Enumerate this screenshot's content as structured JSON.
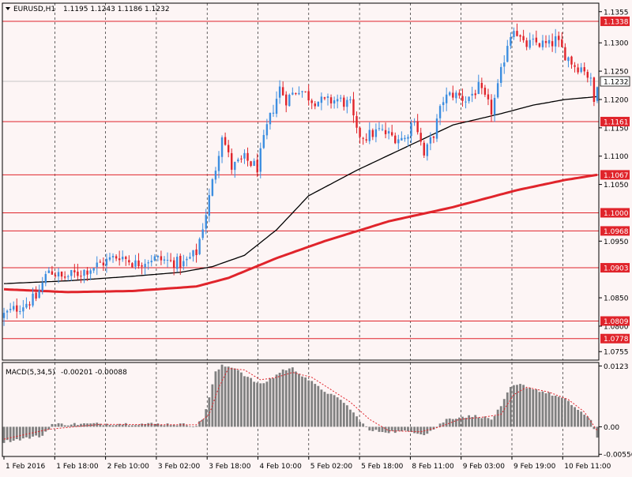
{
  "header": {
    "symbol": "EURUSD,H1",
    "ohlc": "1.1195 1.1243 1.1186 1.1232"
  },
  "colors": {
    "background": "#fdf5f5",
    "bull_candle": "#3d8ee0",
    "bear_candle": "#e0242b",
    "level_line": "#e0242b",
    "ma_fast": "#000000",
    "ma_slow": "#e0242b",
    "macd_hist": "#808080",
    "macd_signal": "#e0242b",
    "grid": "#000000"
  },
  "chart_data": [
    {
      "type": "candlestick",
      "title": "",
      "y_ticks": [
        "1.1355",
        "1.1300",
        "1.1250",
        "1.1200",
        "1.1150",
        "1.1100",
        "1.1050",
        "1.0950",
        "1.0850",
        "1.0800",
        "1.0755"
      ],
      "ylim": [
        1.074,
        1.137
      ],
      "x_labels": [
        "1 Feb 2016",
        "1 Feb 18:00",
        "2 Feb 10:00",
        "3 Feb 02:00",
        "3 Feb 18:00",
        "4 Feb 10:00",
        "5 Feb 02:00",
        "5 Feb 18:00",
        "8 Feb 11:00",
        "9 Feb 03:00",
        "9 Feb 19:00",
        "10 Feb 11:00"
      ],
      "grid": "vertical-dashed",
      "current_price": "1.1232",
      "levels": [
        {
          "value": 1.1338,
          "label": "1.1338"
        },
        {
          "value": 1.1161,
          "label": "1.1161"
        },
        {
          "value": 1.1067,
          "label": "1.1067"
        },
        {
          "value": 1.1,
          "label": "1.1000"
        },
        {
          "value": 1.0968,
          "label": "1.0968"
        },
        {
          "value": 1.0903,
          "label": "1.0903"
        },
        {
          "value": 1.0809,
          "label": "1.0809"
        },
        {
          "value": 1.0778,
          "label": "1.0778"
        }
      ],
      "price_path": [
        [
          0,
          1.082
        ],
        [
          5,
          1.0835
        ],
        [
          10,
          1.085
        ],
        [
          14,
          1.09
        ],
        [
          18,
          1.0885
        ],
        [
          24,
          1.0895
        ],
        [
          30,
          1.091
        ],
        [
          36,
          1.0925
        ],
        [
          41,
          1.091
        ],
        [
          46,
          1.092
        ],
        [
          51,
          1.0915
        ],
        [
          56,
          1.091
        ],
        [
          60,
          1.093
        ],
        [
          63,
          1.1
        ],
        [
          66,
          1.108
        ],
        [
          68,
          1.114
        ],
        [
          71,
          1.108
        ],
        [
          75,
          1.1095
        ],
        [
          79,
          1.108
        ],
        [
          82,
          1.115
        ],
        [
          86,
          1.122
        ],
        [
          88,
          1.12
        ],
        [
          92,
          1.122
        ],
        [
          96,
          1.12
        ],
        [
          100,
          1.1195
        ],
        [
          104,
          1.12
        ],
        [
          108,
          1.119
        ],
        [
          110,
          1.114
        ],
        [
          113,
          1.1135
        ],
        [
          117,
          1.1145
        ],
        [
          121,
          1.1135
        ],
        [
          125,
          1.113
        ],
        [
          128,
          1.117
        ],
        [
          131,
          1.11
        ],
        [
          134,
          1.114
        ],
        [
          137,
          1.12
        ],
        [
          140,
          1.121
        ],
        [
          144,
          1.12
        ],
        [
          148,
          1.122
        ],
        [
          152,
          1.118
        ],
        [
          154,
          1.122
        ],
        [
          157,
          1.13
        ],
        [
          159,
          1.133
        ],
        [
          162,
          1.1295
        ],
        [
          166,
          1.13
        ],
        [
          170,
          1.1295
        ],
        [
          172,
          1.1305
        ],
        [
          175,
          1.128
        ],
        [
          178,
          1.126
        ],
        [
          181,
          1.1255
        ],
        [
          183,
          1.123
        ],
        [
          184,
          1.1195
        ],
        [
          185,
          1.1232
        ]
      ],
      "ma_fast_path": [
        [
          0,
          1.0875
        ],
        [
          20,
          1.088
        ],
        [
          40,
          1.0888
        ],
        [
          55,
          1.0895
        ],
        [
          65,
          1.0905
        ],
        [
          75,
          1.0925
        ],
        [
          85,
          1.097
        ],
        [
          95,
          1.103
        ],
        [
          110,
          1.1075
        ],
        [
          125,
          1.1115
        ],
        [
          140,
          1.1155
        ],
        [
          155,
          1.1175
        ],
        [
          165,
          1.119
        ],
        [
          175,
          1.12
        ],
        [
          185,
          1.1205
        ]
      ],
      "ma_slow_path": [
        [
          0,
          1.0865
        ],
        [
          20,
          1.086
        ],
        [
          40,
          1.0862
        ],
        [
          60,
          1.087
        ],
        [
          70,
          1.0885
        ],
        [
          85,
          1.092
        ],
        [
          100,
          1.095
        ],
        [
          120,
          1.0985
        ],
        [
          140,
          1.101
        ],
        [
          160,
          1.104
        ],
        [
          175,
          1.1058
        ],
        [
          185,
          1.1067
        ]
      ]
    },
    {
      "type": "histogram",
      "label": "MACD(5,34,5)",
      "values_text": "-0.00201 -0.00088",
      "y_ticks": [
        "0.0123",
        "0.00",
        "-0.00556"
      ],
      "ylim": [
        -0.006,
        0.013
      ],
      "hist_path": [
        [
          0,
          -0.003
        ],
        [
          12,
          -0.0018
        ],
        [
          15,
          0.0005
        ],
        [
          30,
          0.0006
        ],
        [
          45,
          0.0006
        ],
        [
          55,
          0.0005
        ],
        [
          60,
          0.0003
        ],
        [
          62,
          0.0015
        ],
        [
          64,
          0.006
        ],
        [
          66,
          0.011
        ],
        [
          68,
          0.0123
        ],
        [
          72,
          0.012
        ],
        [
          76,
          0.01
        ],
        [
          80,
          0.0085
        ],
        [
          84,
          0.01
        ],
        [
          87,
          0.0115
        ],
        [
          90,
          0.0118
        ],
        [
          94,
          0.01
        ],
        [
          98,
          0.008
        ],
        [
          102,
          0.0065
        ],
        [
          106,
          0.005
        ],
        [
          110,
          0.002
        ],
        [
          114,
          -0.0008
        ],
        [
          120,
          -0.001
        ],
        [
          128,
          -0.001
        ],
        [
          131,
          -0.0015
        ],
        [
          134,
          -0.0005
        ],
        [
          138,
          0.0015
        ],
        [
          142,
          0.002
        ],
        [
          148,
          0.0022
        ],
        [
          152,
          0.0015
        ],
        [
          155,
          0.004
        ],
        [
          158,
          0.008
        ],
        [
          161,
          0.0085
        ],
        [
          166,
          0.0075
        ],
        [
          171,
          0.0065
        ],
        [
          175,
          0.0055
        ],
        [
          180,
          0.003
        ],
        [
          183,
          0.0012
        ],
        [
          185,
          -0.002
        ]
      ],
      "signal_path": [
        [
          0,
          -0.0025
        ],
        [
          14,
          -0.0005
        ],
        [
          30,
          0.0005
        ],
        [
          60,
          0.0004
        ],
        [
          64,
          0.0025
        ],
        [
          67,
          0.008
        ],
        [
          70,
          0.0118
        ],
        [
          75,
          0.0115
        ],
        [
          80,
          0.0095
        ],
        [
          85,
          0.01
        ],
        [
          90,
          0.011
        ],
        [
          96,
          0.01
        ],
        [
          102,
          0.0075
        ],
        [
          108,
          0.005
        ],
        [
          114,
          0.0015
        ],
        [
          120,
          -0.0008
        ],
        [
          130,
          -0.001
        ],
        [
          136,
          0.0
        ],
        [
          142,
          0.0015
        ],
        [
          150,
          0.002
        ],
        [
          155,
          0.0025
        ],
        [
          159,
          0.0065
        ],
        [
          163,
          0.008
        ],
        [
          170,
          0.007
        ],
        [
          176,
          0.0055
        ],
        [
          181,
          0.003
        ],
        [
          185,
          -0.0008
        ]
      ]
    }
  ]
}
